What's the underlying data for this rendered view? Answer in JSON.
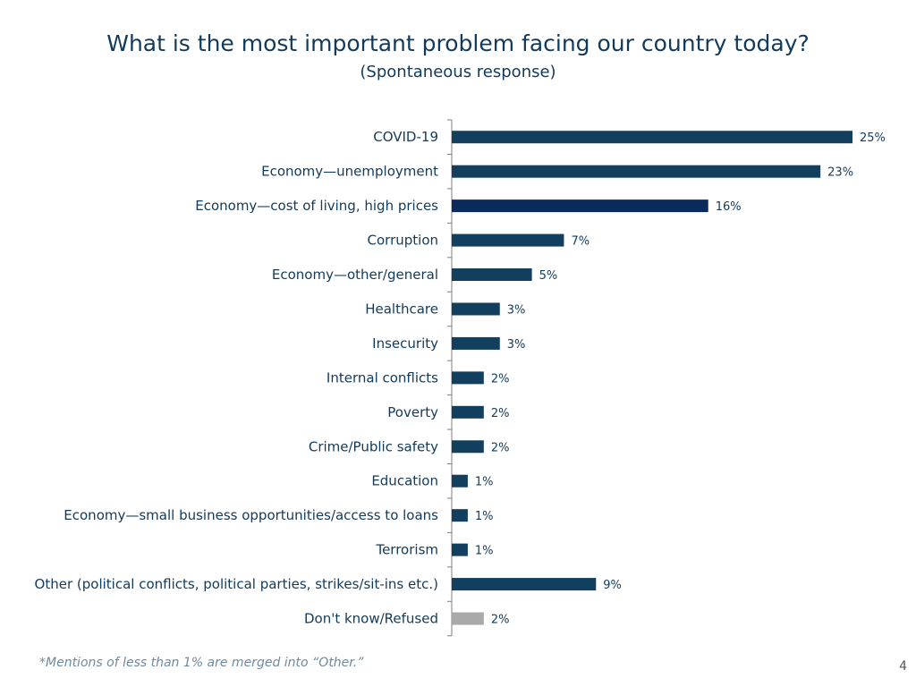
{
  "chart_data": {
    "type": "bar",
    "orientation": "horizontal",
    "title": "What is the most important problem facing our country today?",
    "subtitle": "(Spontaneous response)",
    "categories": [
      "COVID-19",
      "Economy—unemployment",
      "Economy—cost of living, high prices",
      "Corruption",
      "Economy—other/general",
      "Healthcare",
      "Insecurity",
      "Internal conflicts",
      "Poverty",
      "Crime/Public safety",
      "Education",
      "Economy—small business opportunities/access to loans",
      "Terrorism",
      "Other (political conflicts, political parties, strikes/sit-ins etc.)",
      "Don't know/Refused"
    ],
    "values": [
      25,
      23,
      16,
      7,
      5,
      3,
      3,
      2,
      2,
      2,
      1,
      1,
      1,
      9,
      2
    ],
    "value_labels": [
      "25%",
      "23%",
      "16%",
      "7%",
      "5%",
      "3%",
      "3%",
      "2%",
      "2%",
      "2%",
      "1%",
      "1%",
      "1%",
      "9%",
      "2%"
    ],
    "unit": "%",
    "xlim": [
      0,
      25
    ],
    "grid": false,
    "colors": {
      "default": "#123f5e",
      "highlight": "#0b2a5c",
      "muted": "#a9a9a9"
    },
    "bar_colors": [
      "default",
      "default",
      "highlight",
      "default",
      "default",
      "default",
      "default",
      "default",
      "default",
      "default",
      "default",
      "default",
      "default",
      "default",
      "muted"
    ]
  },
  "footnote": "*Mentions of less than 1% are merged into “Other.”",
  "page_number": "4"
}
